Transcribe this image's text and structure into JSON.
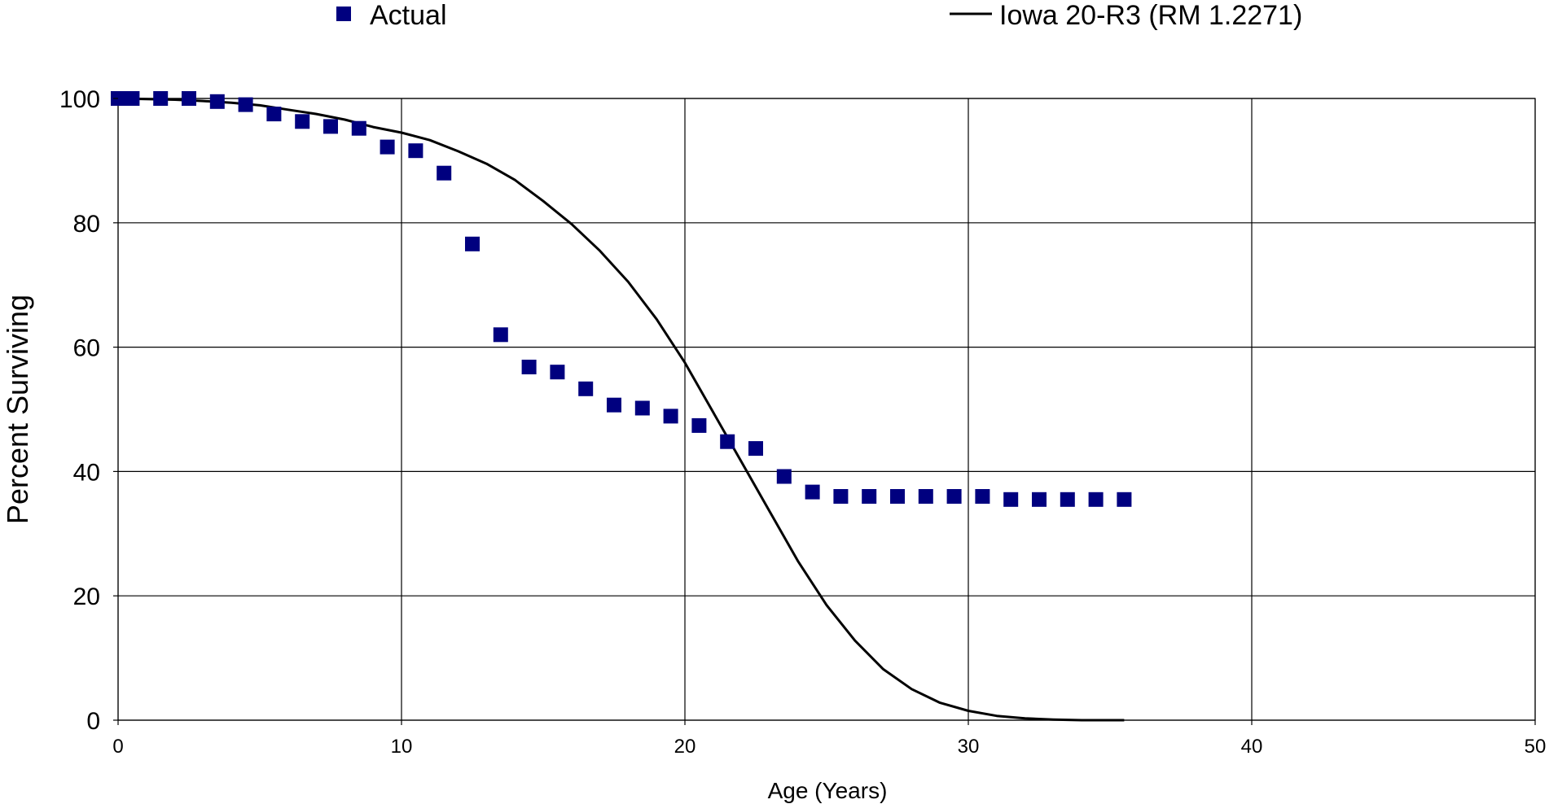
{
  "chart_data": {
    "type": "scatter",
    "title": "",
    "xlabel": "Age (Years)",
    "ylabel": "Percent Surviving",
    "xlim": [
      0,
      50
    ],
    "ylim": [
      0,
      100
    ],
    "x_ticks": [
      "0",
      "10",
      "20",
      "30",
      "40",
      "50"
    ],
    "y_ticks": [
      "0",
      "20",
      "40",
      "60",
      "80",
      "100"
    ],
    "grid": true,
    "legend_position": "top",
    "colors": {
      "actual": "#00007f",
      "curve": "#000000",
      "grid": "#000000"
    },
    "series": [
      {
        "name": "Actual",
        "type": "scatter",
        "marker": "square",
        "x": [
          0,
          0.5,
          1.5,
          2.5,
          3.5,
          4.5,
          5.5,
          6.5,
          7.5,
          8.5,
          9.5,
          10.5,
          11.5,
          12.5,
          13.5,
          14.5,
          15.5,
          16.5,
          17.5,
          18.5,
          19.5,
          20.5,
          21.5,
          22.5,
          23.5,
          24.5,
          25.5,
          26.5,
          27.5,
          28.5,
          29.5,
          30.5,
          31.5,
          32.5,
          33.5,
          34.5,
          35.5
        ],
        "y": [
          100,
          100,
          100,
          100,
          99.5,
          99,
          97.5,
          96.3,
          95.5,
          95.2,
          92.2,
          91.6,
          88,
          76.6,
          62,
          56.8,
          56,
          53.3,
          50.7,
          50.2,
          48.9,
          47.4,
          44.8,
          43.7,
          39.2,
          36.7,
          36,
          36,
          36,
          36,
          36,
          36,
          35.5,
          35.5,
          35.5,
          35.5,
          35.5
        ]
      },
      {
        "name": "Iowa 20-R3 (RM 1.2271)",
        "type": "line",
        "x": [
          0,
          1,
          2,
          3,
          4,
          5,
          6,
          7,
          8,
          9,
          10,
          11,
          12,
          13,
          14,
          15,
          16,
          17,
          18,
          19,
          20,
          21,
          22,
          23,
          24,
          25,
          26,
          27,
          28,
          29,
          30,
          31,
          32,
          33,
          34,
          35.5
        ],
        "y": [
          100,
          99.9,
          99.8,
          99.6,
          99.3,
          98.9,
          98.2,
          97.5,
          96.6,
          95.4,
          94.5,
          93.3,
          91.5,
          89.5,
          86.9,
          83.5,
          79.8,
          75.5,
          70.5,
          64.5,
          57.5,
          49.5,
          41.5,
          33.5,
          25.5,
          18.5,
          12.8,
          8.2,
          5,
          2.8,
          1.5,
          0.7,
          0.3,
          0.1,
          0,
          0
        ]
      }
    ]
  }
}
